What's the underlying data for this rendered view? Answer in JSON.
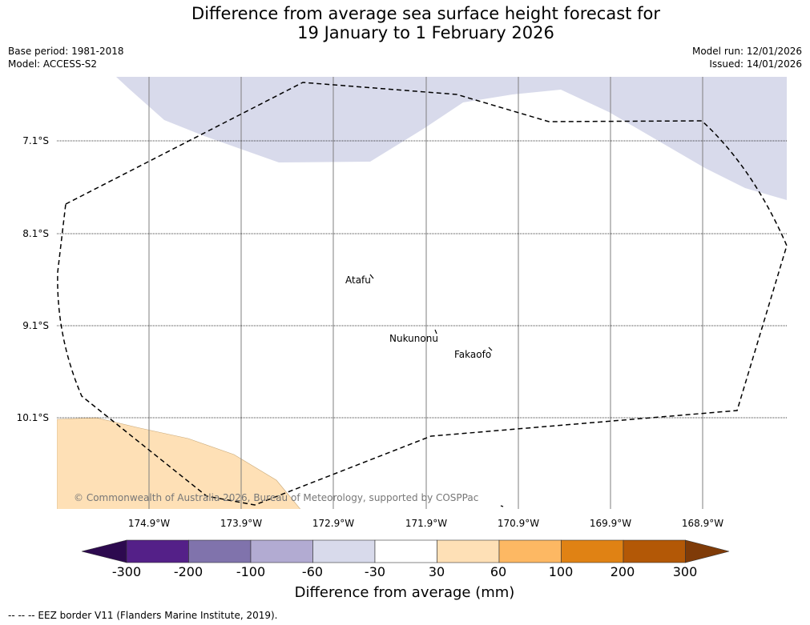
{
  "title": {
    "line1": "Difference from average sea surface height forecast for",
    "line2": "19 January to 1 February 2026"
  },
  "meta": {
    "base_period": "Base period: 1981-2018",
    "model": "Model: ACCESS-S2",
    "model_run": "Model run: 12/01/2026",
    "issued": "Issued: 14/01/2026"
  },
  "map": {
    "latitude_labels": [
      "7.1°S",
      "8.1°S",
      "9.1°S",
      "10.1°S"
    ],
    "longitude_labels": [
      "174.9°W",
      "173.9°W",
      "172.9°W",
      "171.9°W",
      "170.9°W",
      "169.9°W",
      "168.9°W"
    ],
    "places": [
      "Atafu",
      "Nukunonu",
      "Fakaofo"
    ],
    "copyright": "© Commonwealth of Australia 2026, Bureau of Meteorology, supported by COSPPac"
  },
  "colorbar": {
    "title": "Difference from average (mm)",
    "ticks": [
      "-300",
      "-200",
      "-100",
      "-60",
      "-30",
      "30",
      "60",
      "100",
      "200",
      "300"
    ],
    "colors": [
      "#2d0a4f",
      "#542088",
      "#8073ac",
      "#b2abd2",
      "#d8daeb",
      "#ffffff",
      "#fee0b6",
      "#fdb863",
      "#e08214",
      "#b35806",
      "#7f3b08"
    ]
  },
  "footer": "--  --  -- EEZ border V11 (Flanders Marine Institute, 2019)."
}
